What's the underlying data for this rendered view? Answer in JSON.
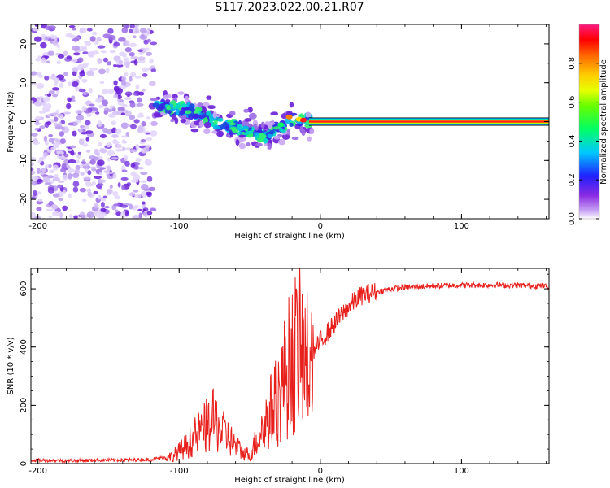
{
  "title": "S117.2023.022.00.21.R07",
  "colors": {
    "snr_line": "#e8201c",
    "spectrogram_low": "#b89aef",
    "spectrogram_mid": "#1b48e0",
    "band_center": "#ff1a1a",
    "colorbar": [
      "#ffffff",
      "#8a2be2",
      "#2020ff",
      "#00c8ff",
      "#00ff66",
      "#bfff00",
      "#ffe000",
      "#ff8000",
      "#ff0000",
      "#ff1a80"
    ]
  },
  "chart_data": [
    {
      "type": "heatmap",
      "name": "spectrogram",
      "xlabel": "Height of straight line (km)",
      "ylabel": "Frequency (Hz)",
      "xlim": [
        -205,
        162
      ],
      "ylim": [
        -25,
        25
      ],
      "x_ticks": [
        -200,
        -100,
        0,
        100
      ],
      "x_tick_labels": [
        "-200",
        "-100",
        "0",
        "100"
      ],
      "y_ticks": [
        20,
        10,
        0,
        -10,
        -20
      ],
      "y_tick_labels": [
        "20",
        "10",
        "0",
        "-10",
        "-20"
      ],
      "colorbar": {
        "label": "Normalized spectral amplitude",
        "range": [
          0,
          1
        ],
        "ticks": [
          0,
          0.2,
          0.4,
          0.6,
          0.8
        ],
        "tick_labels": [
          "0.0",
          "0.2",
          "0.4",
          "0.6",
          "0.8"
        ]
      },
      "regions": [
        {
          "x_range": [
            -205,
            -118
          ],
          "freq_range": [
            -25,
            25
          ],
          "amplitude": "low (scattered noise)"
        },
        {
          "x_range": [
            -118,
            -5
          ],
          "freq_trend": [
            [
              -118,
              4
            ],
            [
              -95,
              3
            ],
            [
              -80,
              1
            ],
            [
              -70,
              -1
            ],
            [
              -55,
              -2
            ],
            [
              -42,
              -4
            ],
            [
              -30,
              -2
            ],
            [
              -18,
              1
            ],
            [
              -8,
              0
            ]
          ],
          "amplitude": "medium"
        },
        {
          "x_range": [
            0,
            162
          ],
          "freq": 0,
          "amplitude": "high (narrow band)"
        }
      ]
    },
    {
      "type": "line",
      "name": "snr",
      "xlabel": "Height of straight line (km)",
      "ylabel": "SNR (10 * v/v)",
      "xlim": [
        -205,
        162
      ],
      "ylim": [
        0,
        670
      ],
      "x_ticks": [
        -200,
        -100,
        0,
        100
      ],
      "x_tick_labels": [
        "-200",
        "-100",
        "0",
        "100"
      ],
      "y_ticks": [
        0,
        200,
        400,
        600
      ],
      "y_tick_labels": [
        "0",
        "200",
        "400",
        "600"
      ],
      "x": [
        -205,
        -180,
        -150,
        -120,
        -105,
        -95,
        -85,
        -75,
        -70,
        -65,
        -60,
        -55,
        -50,
        -45,
        -40,
        -35,
        -30,
        -25,
        -20,
        -15,
        -10,
        -5,
        0,
        10,
        20,
        30,
        40,
        50,
        60,
        80,
        100,
        120,
        140,
        155,
        162
      ],
      "y": [
        12,
        10,
        12,
        14,
        25,
        60,
        110,
        150,
        110,
        90,
        60,
        40,
        30,
        80,
        130,
        180,
        220,
        300,
        360,
        400,
        340,
        380,
        420,
        480,
        540,
        580,
        590,
        600,
        605,
        610,
        612,
        613,
        612,
        610,
        608
      ]
    }
  ]
}
